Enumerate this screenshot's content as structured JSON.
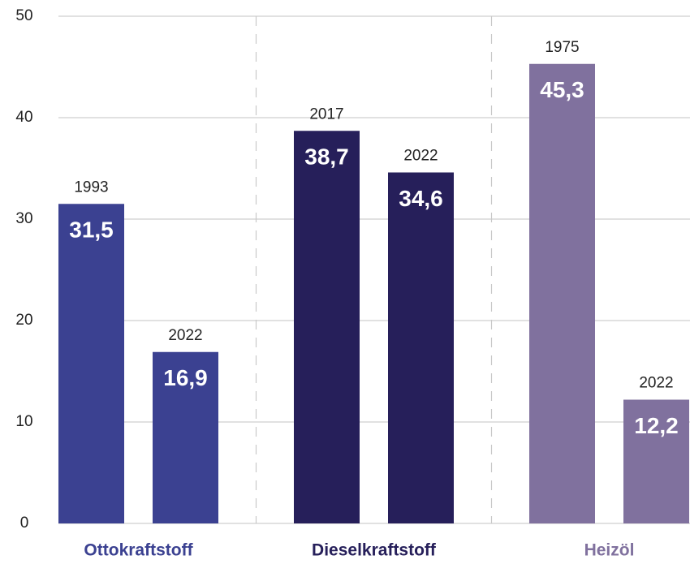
{
  "chart_data": {
    "type": "grouped-bar",
    "ylim": [
      0,
      50
    ],
    "yticks": [
      0,
      10,
      20,
      30,
      40,
      50
    ],
    "grid": true,
    "groups": [
      {
        "name": "Ottokraftstoff",
        "color": "#3b4191",
        "categories": [
          "1993",
          "2022"
        ],
        "values": [
          31.5,
          16.9
        ],
        "value_labels": [
          "31,5",
          "16,9"
        ]
      },
      {
        "name": "Dieselkraftstoff",
        "color": "#261f5a",
        "categories": [
          "2017",
          "2022"
        ],
        "values": [
          38.7,
          34.6
        ],
        "value_labels": [
          "38,7",
          "34,6"
        ]
      },
      {
        "name": "Heizöl",
        "color": "#80719e",
        "categories": [
          "1975",
          "2022"
        ],
        "values": [
          45.3,
          12.2
        ],
        "value_labels": [
          "45,3",
          "12,2"
        ]
      }
    ]
  }
}
